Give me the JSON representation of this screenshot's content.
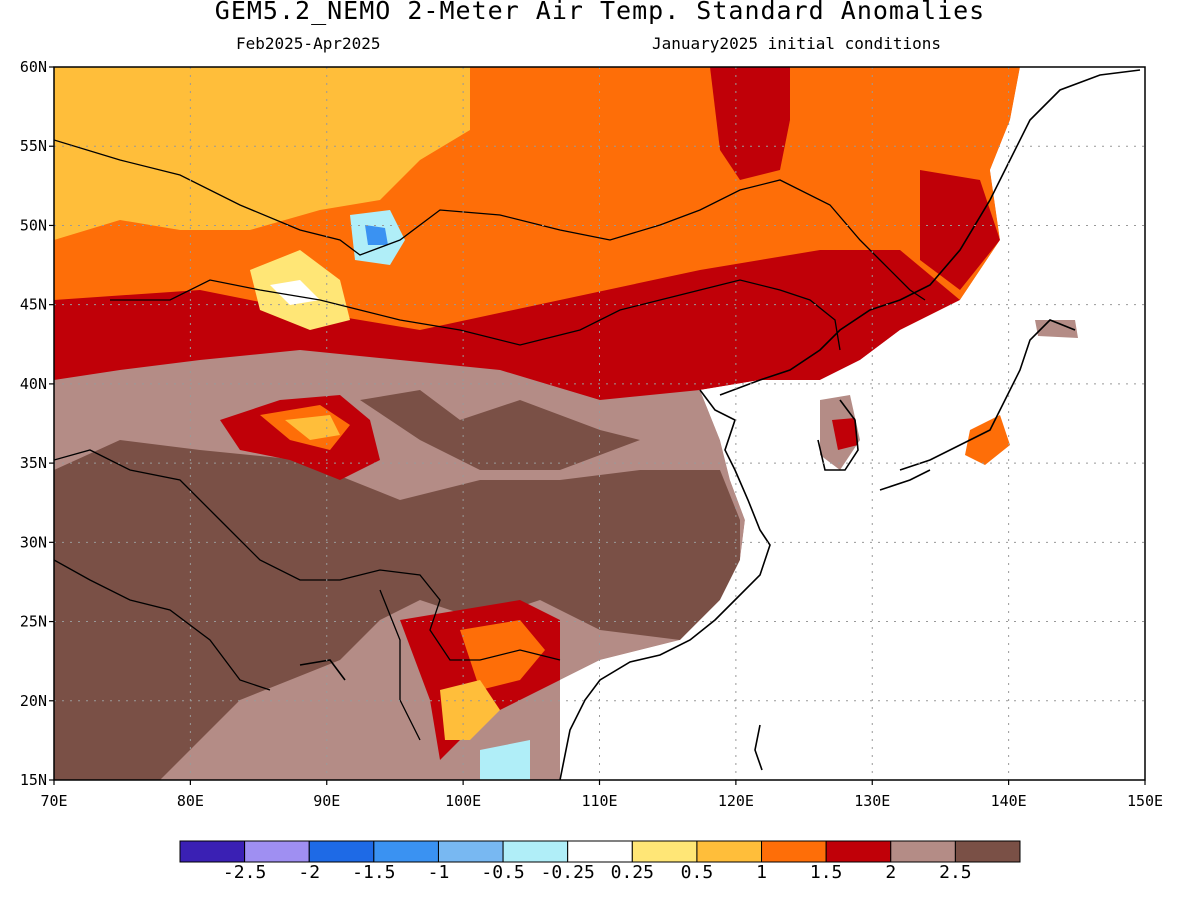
{
  "title": "GEM5.2_NEMO 2-Meter Air Temp. Standard Anomalies",
  "subtitle_left": "Feb2025-Apr2025",
  "subtitle_right": "January2025 initial conditions",
  "map": {
    "lon_range": [
      70,
      150
    ],
    "lat_range": [
      15,
      60
    ],
    "lon_labels": [
      "70E",
      "80E",
      "90E",
      "100E",
      "110E",
      "120E",
      "130E",
      "140E",
      "150E"
    ],
    "lat_labels": [
      "15N",
      "20N",
      "25N",
      "30N",
      "35N",
      "40N",
      "45N",
      "50N",
      "55N",
      "60N"
    ],
    "grid": "dotted"
  },
  "colorbar": {
    "colors": [
      "#3a20b4",
      "#9f8ff2",
      "#1e6ae6",
      "#3a92f2",
      "#78b8f2",
      "#b0eef8",
      "#ffffff",
      "#ffe676",
      "#ffbe3a",
      "#fe6e08",
      "#c00008",
      "#b48c86",
      "#7a5046"
    ],
    "labels": [
      "-2.5",
      "-2",
      "-1.5",
      "-1",
      "-0.5",
      "-0.25",
      "0.25",
      "0.5",
      "1",
      "1.5",
      "2",
      "2.5"
    ]
  }
}
